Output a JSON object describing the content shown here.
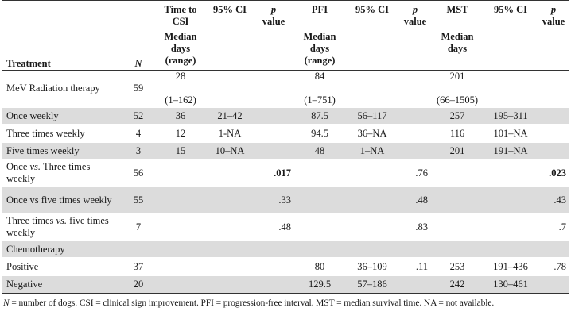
{
  "header": {
    "treatment": "Treatment",
    "n": "N",
    "time_to_csi": "Time to CSI",
    "ci1": "95% CI",
    "p": "p",
    "value": "value",
    "pfi": "PFI",
    "ci2": "95% CI",
    "mst": "MST",
    "ci3": "95% CI",
    "median_days_range": "Median days (range)",
    "median_days": "Median days"
  },
  "rows": [
    {
      "treatment": "MeV Radiation therapy",
      "n": "59",
      "csi": "28",
      "csi_range": "(1–162)",
      "csi_ci": "",
      "csi_p": "",
      "pfi": "84",
      "pfi_range": "(1–751)",
      "pfi_ci": "",
      "pfi_p": "",
      "mst": "201",
      "mst_range": "(66–1505)",
      "mst_ci": "",
      "mst_p": ""
    },
    {
      "treatment": "Once weekly",
      "n": "52",
      "csi": "36",
      "csi_ci": "21–42",
      "csi_p": "",
      "pfi": "87.5",
      "pfi_ci": "56–117",
      "pfi_p": "",
      "mst": "257",
      "mst_ci": "195–311",
      "mst_p": ""
    },
    {
      "treatment": "Three times weekly",
      "n": "4",
      "csi": "12",
      "csi_ci": "1-NA",
      "csi_p": "",
      "pfi": "94.5",
      "pfi_ci": "36–NA",
      "pfi_p": "",
      "mst": "116",
      "mst_ci": "101–NA",
      "mst_p": ""
    },
    {
      "treatment": "Five times weekly",
      "n": "3",
      "csi": "15",
      "csi_ci": "10–NA",
      "csi_p": "",
      "pfi": "48",
      "pfi_ci": "1–NA",
      "pfi_p": "",
      "mst": "201",
      "mst_ci": "191–NA",
      "mst_p": ""
    },
    {
      "treatment_a": "Once",
      "treatment_vs": "vs.",
      "treatment_b": "Three times weekly",
      "n": "56",
      "csi_p": ".017",
      "pfi_p": ".76",
      "mst_p": ".023"
    },
    {
      "treatment": "Once vs five times weekly",
      "n": "55",
      "csi_p": ".33",
      "pfi_p": ".48",
      "mst_p": ".43"
    },
    {
      "treatment_a": "Three times",
      "treatment_vs": "vs.",
      "treatment_b": "five times weekly",
      "n": "7",
      "csi_p": ".48",
      "pfi_p": ".83",
      "mst_p": ".7"
    },
    {
      "treatment": "Chemotherapy"
    },
    {
      "treatment": "Positive",
      "n": "37",
      "pfi": "80",
      "pfi_ci": "36–109",
      "pfi_p": ".11",
      "mst": "253",
      "mst_ci": "191–436",
      "mst_p": ".78"
    },
    {
      "treatment": "Negative",
      "n": "20",
      "pfi": "129.5",
      "pfi_ci": "57–186",
      "mst": "242",
      "mst_ci": "130–461"
    }
  ],
  "footnote": {
    "n": "N",
    "text": " = number of dogs. CSI = clinical sign improvement. PFI = progression-free interval. MST = median survival time. NA = not available."
  }
}
